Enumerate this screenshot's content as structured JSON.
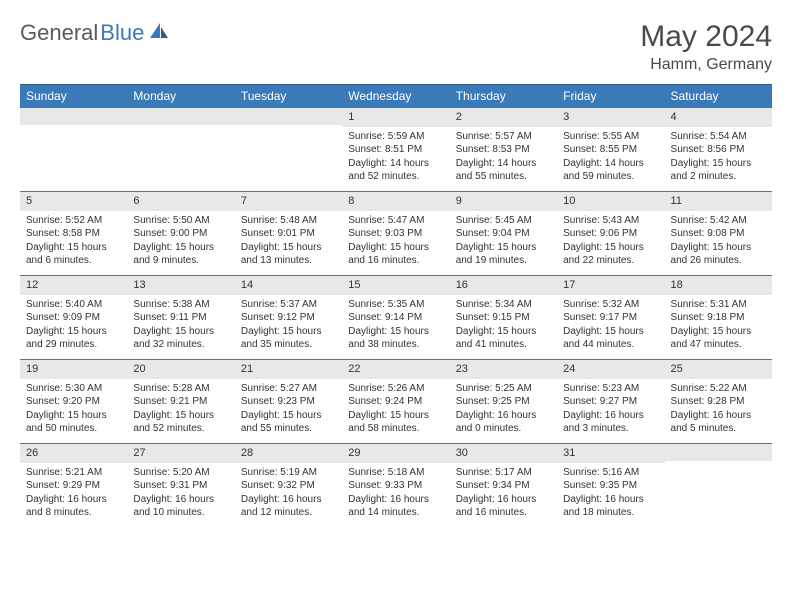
{
  "brand": {
    "part1": "General",
    "part2": "Blue"
  },
  "title": "May 2024",
  "location": "Hamm, Germany",
  "colors": {
    "header_bg": "#3a7ab8",
    "header_text": "#ffffff",
    "row_border": "#3a7ab8",
    "daynum_bg": "#e8e8e8",
    "body_text": "#333333",
    "page_bg": "#ffffff",
    "brand_gray": "#5a5a5a",
    "brand_blue": "#3a7ab8"
  },
  "typography": {
    "title_fontsize": 30,
    "location_fontsize": 16,
    "dow_fontsize": 12,
    "daynum_fontsize": 11,
    "cell_fontsize": 10
  },
  "days_of_week": [
    "Sunday",
    "Monday",
    "Tuesday",
    "Wednesday",
    "Thursday",
    "Friday",
    "Saturday"
  ],
  "weeks": [
    [
      null,
      null,
      null,
      {
        "n": "1",
        "sunrise": "5:59 AM",
        "sunset": "8:51 PM",
        "daylight": "14 hours and 52 minutes."
      },
      {
        "n": "2",
        "sunrise": "5:57 AM",
        "sunset": "8:53 PM",
        "daylight": "14 hours and 55 minutes."
      },
      {
        "n": "3",
        "sunrise": "5:55 AM",
        "sunset": "8:55 PM",
        "daylight": "14 hours and 59 minutes."
      },
      {
        "n": "4",
        "sunrise": "5:54 AM",
        "sunset": "8:56 PM",
        "daylight": "15 hours and 2 minutes."
      }
    ],
    [
      {
        "n": "5",
        "sunrise": "5:52 AM",
        "sunset": "8:58 PM",
        "daylight": "15 hours and 6 minutes."
      },
      {
        "n": "6",
        "sunrise": "5:50 AM",
        "sunset": "9:00 PM",
        "daylight": "15 hours and 9 minutes."
      },
      {
        "n": "7",
        "sunrise": "5:48 AM",
        "sunset": "9:01 PM",
        "daylight": "15 hours and 13 minutes."
      },
      {
        "n": "8",
        "sunrise": "5:47 AM",
        "sunset": "9:03 PM",
        "daylight": "15 hours and 16 minutes."
      },
      {
        "n": "9",
        "sunrise": "5:45 AM",
        "sunset": "9:04 PM",
        "daylight": "15 hours and 19 minutes."
      },
      {
        "n": "10",
        "sunrise": "5:43 AM",
        "sunset": "9:06 PM",
        "daylight": "15 hours and 22 minutes."
      },
      {
        "n": "11",
        "sunrise": "5:42 AM",
        "sunset": "9:08 PM",
        "daylight": "15 hours and 26 minutes."
      }
    ],
    [
      {
        "n": "12",
        "sunrise": "5:40 AM",
        "sunset": "9:09 PM",
        "daylight": "15 hours and 29 minutes."
      },
      {
        "n": "13",
        "sunrise": "5:38 AM",
        "sunset": "9:11 PM",
        "daylight": "15 hours and 32 minutes."
      },
      {
        "n": "14",
        "sunrise": "5:37 AM",
        "sunset": "9:12 PM",
        "daylight": "15 hours and 35 minutes."
      },
      {
        "n": "15",
        "sunrise": "5:35 AM",
        "sunset": "9:14 PM",
        "daylight": "15 hours and 38 minutes."
      },
      {
        "n": "16",
        "sunrise": "5:34 AM",
        "sunset": "9:15 PM",
        "daylight": "15 hours and 41 minutes."
      },
      {
        "n": "17",
        "sunrise": "5:32 AM",
        "sunset": "9:17 PM",
        "daylight": "15 hours and 44 minutes."
      },
      {
        "n": "18",
        "sunrise": "5:31 AM",
        "sunset": "9:18 PM",
        "daylight": "15 hours and 47 minutes."
      }
    ],
    [
      {
        "n": "19",
        "sunrise": "5:30 AM",
        "sunset": "9:20 PM",
        "daylight": "15 hours and 50 minutes."
      },
      {
        "n": "20",
        "sunrise": "5:28 AM",
        "sunset": "9:21 PM",
        "daylight": "15 hours and 52 minutes."
      },
      {
        "n": "21",
        "sunrise": "5:27 AM",
        "sunset": "9:23 PM",
        "daylight": "15 hours and 55 minutes."
      },
      {
        "n": "22",
        "sunrise": "5:26 AM",
        "sunset": "9:24 PM",
        "daylight": "15 hours and 58 minutes."
      },
      {
        "n": "23",
        "sunrise": "5:25 AM",
        "sunset": "9:25 PM",
        "daylight": "16 hours and 0 minutes."
      },
      {
        "n": "24",
        "sunrise": "5:23 AM",
        "sunset": "9:27 PM",
        "daylight": "16 hours and 3 minutes."
      },
      {
        "n": "25",
        "sunrise": "5:22 AM",
        "sunset": "9:28 PM",
        "daylight": "16 hours and 5 minutes."
      }
    ],
    [
      {
        "n": "26",
        "sunrise": "5:21 AM",
        "sunset": "9:29 PM",
        "daylight": "16 hours and 8 minutes."
      },
      {
        "n": "27",
        "sunrise": "5:20 AM",
        "sunset": "9:31 PM",
        "daylight": "16 hours and 10 minutes."
      },
      {
        "n": "28",
        "sunrise": "5:19 AM",
        "sunset": "9:32 PM",
        "daylight": "16 hours and 12 minutes."
      },
      {
        "n": "29",
        "sunrise": "5:18 AM",
        "sunset": "9:33 PM",
        "daylight": "16 hours and 14 minutes."
      },
      {
        "n": "30",
        "sunrise": "5:17 AM",
        "sunset": "9:34 PM",
        "daylight": "16 hours and 16 minutes."
      },
      {
        "n": "31",
        "sunrise": "5:16 AM",
        "sunset": "9:35 PM",
        "daylight": "16 hours and 18 minutes."
      },
      null
    ]
  ],
  "labels": {
    "sunrise": "Sunrise: ",
    "sunset": "Sunset: ",
    "daylight": "Daylight: "
  }
}
